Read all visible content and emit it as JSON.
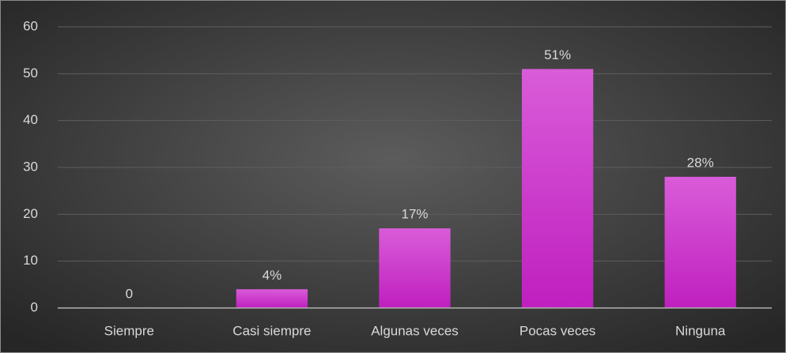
{
  "chart_data": {
    "type": "bar",
    "categories": [
      "Siempre",
      "Casi siempre",
      "Algunas veces",
      "Pocas veces",
      "Ninguna"
    ],
    "values": [
      0,
      4,
      17,
      51,
      28
    ],
    "value_labels": [
      "0",
      "4%",
      "17%",
      "51%",
      "28%"
    ],
    "color": "#cc33cc",
    "ylim": [
      0,
      60
    ],
    "yticks": [
      0,
      10,
      20,
      30,
      40,
      50,
      60
    ],
    "grid": true
  }
}
